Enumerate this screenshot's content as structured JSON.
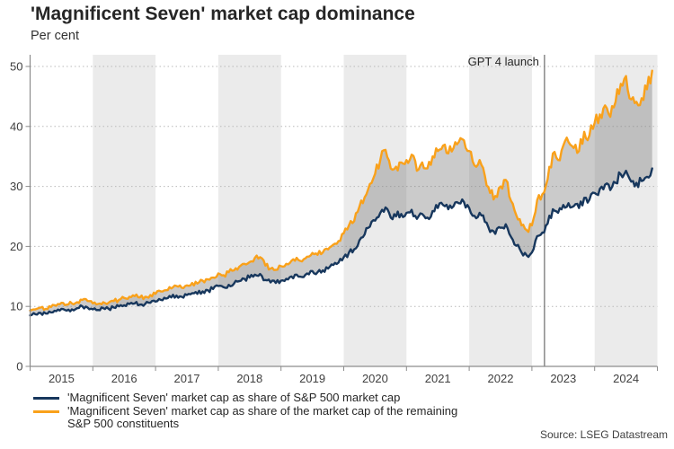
{
  "header": {
    "title": "'Magnificent Seven' market cap dominance",
    "subtitle": "Per cent"
  },
  "source": "Source: LSEG Datastream",
  "legend": [
    {
      "label": "'Magnificent Seven' market cap as share of S&P 500 market cap",
      "color": "#17375d"
    },
    {
      "label": "'Magnificent Seven' market cap as share of the market cap of the remaining S&P 500 constituents",
      "color": "#f9a11b"
    }
  ],
  "chart_data": {
    "type": "line",
    "title": "'Magnificent Seven' market cap dominance",
    "ylabel": "Per cent",
    "x_axis_range": [
      2015,
      2025
    ],
    "ylim": [
      0,
      52
    ],
    "y_ticks": [
      0,
      10,
      20,
      30,
      40,
      50
    ],
    "x_ticks": [
      2015,
      2016,
      2017,
      2018,
      2019,
      2020,
      2021,
      2022,
      2023,
      2024,
      2025
    ],
    "x_tick_labels": [
      "2015",
      "2016",
      "2017",
      "2018",
      "2019",
      "2020",
      "2021",
      "2022",
      "2023",
      "2024"
    ],
    "grid": "dotted-horizontal",
    "legend_position": "bottom-left",
    "shaded_year_bands": [
      2016,
      2018,
      2020,
      2022,
      2024
    ],
    "band_color": "#ebebeb",
    "fill_between_color": "rgba(125,125,125,0.40)",
    "annotation": {
      "label": "GPT 4 launch",
      "x": 2023.2
    },
    "x_start_year": 2015,
    "points_per_year": 12,
    "series": [
      {
        "name": "'Magnificent Seven' market cap as share of S&P 500 market cap",
        "color": "#17375d",
        "values": [
          8.5,
          8.7,
          8.9,
          8.8,
          9.0,
          9.2,
          9.6,
          9.3,
          9.5,
          9.7,
          10.0,
          9.8,
          9.5,
          9.4,
          9.7,
          9.6,
          9.8,
          10.0,
          10.2,
          10.4,
          10.5,
          10.3,
          10.4,
          10.6,
          10.8,
          11.1,
          11.3,
          11.5,
          11.8,
          11.6,
          11.9,
          12.2,
          12.1,
          12.5,
          12.7,
          12.9,
          13.4,
          13.2,
          13.6,
          13.8,
          14.2,
          14.6,
          14.8,
          15.3,
          15.4,
          14.4,
          14.0,
          13.9,
          14.3,
          14.6,
          15.0,
          15.3,
          14.9,
          15.5,
          15.9,
          15.7,
          16.0,
          16.3,
          16.9,
          17.3,
          18.2,
          19.0,
          19.5,
          21.0,
          22.0,
          23.3,
          24.3,
          25.6,
          26.5,
          24.8,
          25.0,
          25.4,
          25.6,
          26.1,
          24.6,
          25.4,
          24.8,
          25.9,
          26.4,
          26.9,
          26.2,
          26.7,
          27.2,
          27.4,
          26.4,
          25.1,
          25.6,
          24.1,
          22.4,
          22.1,
          23.1,
          23.7,
          21.6,
          20.1,
          19.0,
          18.5,
          19.0,
          21.7,
          22.3,
          23.8,
          26.2,
          25.6,
          26.9,
          27.2,
          26.7,
          26.4,
          28.1,
          27.8,
          28.9,
          29.6,
          30.3,
          29.4,
          30.6,
          32.0,
          32.6,
          30.8,
          30.6,
          30.9,
          31.6,
          33.0
        ]
      },
      {
        "name": "'Magnificent Seven' market cap as share of the market cap of the remaining S&P 500 constituents",
        "color": "#f9a11b",
        "values": [
          9.3,
          9.5,
          9.8,
          9.6,
          9.9,
          10.1,
          10.6,
          10.3,
          10.5,
          10.7,
          11.1,
          10.9,
          10.5,
          10.4,
          10.7,
          10.6,
          10.9,
          11.1,
          11.4,
          11.6,
          11.7,
          11.5,
          11.6,
          11.9,
          12.1,
          12.5,
          12.7,
          13.0,
          13.4,
          13.1,
          13.5,
          13.9,
          13.8,
          14.3,
          14.5,
          14.8,
          15.5,
          15.2,
          15.7,
          16.0,
          16.6,
          17.1,
          17.4,
          18.1,
          18.2,
          16.8,
          16.3,
          16.1,
          16.7,
          17.1,
          17.6,
          18.1,
          17.5,
          18.3,
          18.9,
          18.6,
          19.0,
          19.5,
          20.3,
          20.9,
          22.2,
          23.5,
          24.2,
          26.6,
          28.2,
          30.4,
          32.1,
          34.4,
          36.1,
          33.0,
          33.3,
          34.0,
          34.4,
          35.3,
          32.6,
          34.0,
          33.0,
          35.0,
          35.9,
          36.8,
          35.5,
          36.4,
          37.4,
          37.7,
          35.9,
          33.5,
          34.4,
          31.8,
          28.9,
          28.4,
          30.0,
          31.1,
          27.6,
          25.2,
          23.5,
          22.7,
          23.5,
          27.7,
          28.7,
          31.2,
          35.5,
          34.4,
          36.8,
          37.4,
          36.4,
          35.9,
          39.1,
          38.5,
          40.6,
          42.0,
          43.5,
          41.6,
          44.1,
          47.1,
          48.4,
          44.5,
          44.1,
          44.7,
          46.2,
          49.3
        ]
      }
    ]
  }
}
